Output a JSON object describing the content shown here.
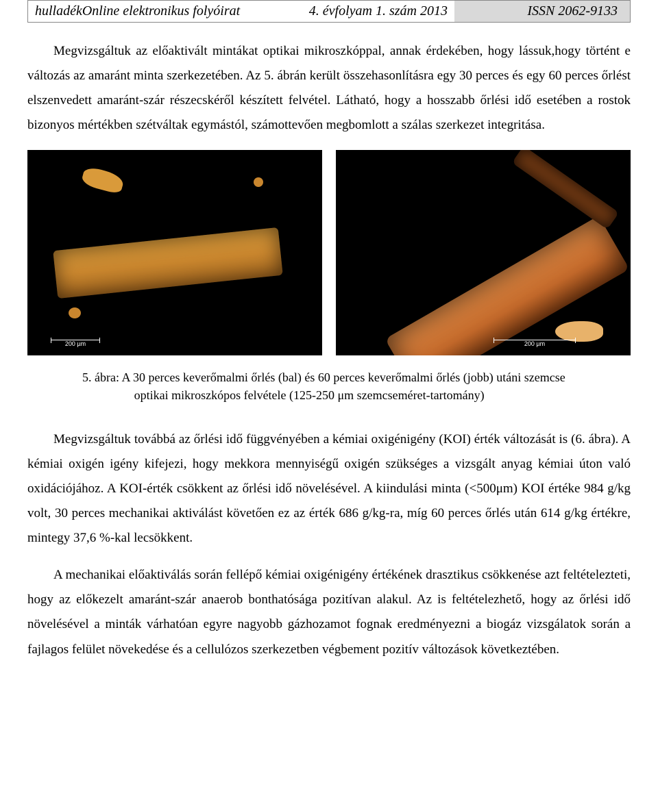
{
  "header": {
    "journal": "hulladékOnline elektronikus folyóirat",
    "issue": "4. évfolyam 1. szám 2013",
    "issn": "ISSN 2062-9133"
  },
  "paragraphs": {
    "p1": "Megvizsgáltuk az előaktivált mintákat optikai mikroszkóppal, annak érdekében, hogy lássuk,hogy történt e változás az amaránt minta szerkezetében. Az 5. ábrán került összehasonlításra egy 30 perces és egy 60 perces őrlést elszenvedett amaránt-szár részecskéről készített felvétel. Látható, hogy a hosszabb őrlési idő esetében a rostok bizonyos mértékben szétváltak egymástól, számottevően megbomlott a szálas szerkezet integritása.",
    "p2": "Megvizsgáltuk továbbá az őrlési idő függvényében a kémiai oxigénigény (KOI) érték változását is (6. ábra). A kémiai oxigén igény kifejezi, hogy mekkora mennyiségű oxigén szükséges a vizsgált anyag kémiai úton való oxidációjához. A KOI-érték csökkent az őrlési idő növelésével. A kiindulási minta (<500μm) KOI értéke 984 g/kg volt, 30 perces mechanikai aktiválást követően ez az érték 686 g/kg-ra, míg 60 perces őrlés után 614 g/kg értékre, mintegy 37,6 %-kal lecsökkent.",
    "p3": "A mechanikai előaktiválás során fellépő kémiai oxigénigény értékének drasztikus csökkenése azt feltételezteti, hogy az előkezelt amaránt-szár anaerob bonthatósága pozitívan alakul. Az is feltételezhető, hogy az őrlési idő növelésével a minták várhatóan egyre nagyobb gázhozamot fognak eredményezni a biogáz vizsgálatok során a fajlagos felület növekedése és a cellulózos szerkezetben végbement pozitív változások következtében."
  },
  "figure": {
    "caption": "5. ábra: A 30 perces keverőmalmi őrlés (bal) és 60 perces keverőmalmi őrlés (jobb) utáni szemcse optikai mikroszkópos felvétele (125-250 μm szemcseméret-tartomány)",
    "scalebar_left": "200 µm",
    "scalebar_right": "200 µm",
    "background_color": "#000000",
    "fiber_color_30": "#c9862e",
    "fiber_color_60": "#c56a2b"
  },
  "typography": {
    "body_font": "Times New Roman",
    "body_size_pt": 14,
    "header_font": "Monotype Corsiva italic",
    "header_size_pt": 15,
    "text_color": "#000000",
    "page_bg": "#ffffff",
    "header_shade_bg": "#d9d9d9"
  }
}
